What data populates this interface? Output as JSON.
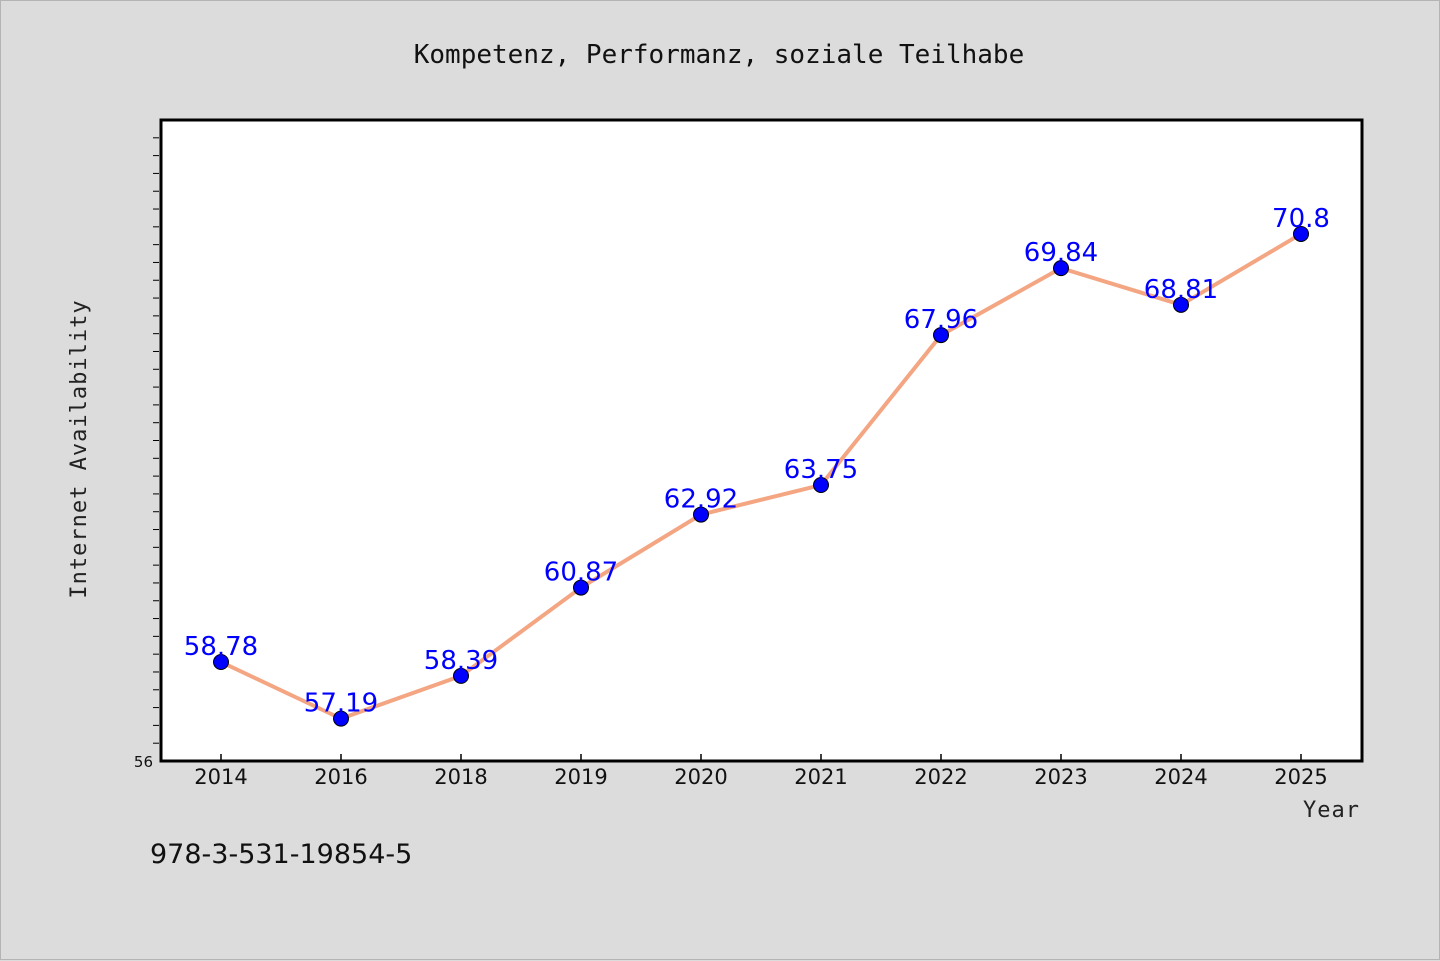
{
  "chart_data": {
    "type": "line",
    "title": "Kompetenz, Performanz, soziale Teilhabe",
    "xlabel": "Year",
    "ylabel": "Internet Availability",
    "categories": [
      "2014",
      "2016",
      "2018",
      "2019",
      "2020",
      "2021",
      "2022",
      "2023",
      "2024",
      "2025"
    ],
    "series": [
      {
        "values": [
          58.78,
          57.19,
          58.39,
          60.87,
          62.92,
          63.75,
          67.96,
          69.84,
          68.81,
          70.8
        ],
        "labels": [
          "58.78",
          "57.19",
          "58.39",
          "60.87",
          "62.92",
          "63.75",
          "67.96",
          "69.84",
          "68.81",
          "70.8"
        ]
      }
    ],
    "ylim": [
      56,
      74
    ],
    "ymin_label": "56",
    "grid": false,
    "colors": {
      "line": "#f4a582",
      "marker": "#0000ff",
      "data_label": "#0000ff",
      "plot_bg": "#ffffff",
      "page_bg": "#dcdcdc"
    }
  },
  "footer_text": "978-3-531-19854-5"
}
